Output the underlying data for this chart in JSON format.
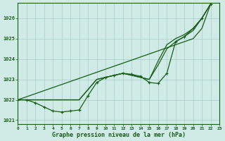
{
  "bg_color": "#d0eae6",
  "grid_color": "#a8ccc8",
  "line_color": "#1a5c1a",
  "title": "Graphe pression niveau de la mer (hPa)",
  "xlim": [
    0,
    23
  ],
  "ylim": [
    1020.8,
    1026.75
  ],
  "yticks": [
    1021,
    1022,
    1023,
    1024,
    1025,
    1026
  ],
  "x_all": [
    0,
    1,
    2,
    3,
    4,
    5,
    6,
    7,
    8,
    9,
    10,
    11,
    12,
    13,
    14,
    15,
    16,
    17,
    18,
    19,
    20,
    21,
    22
  ],
  "y_straight": [
    1022.0,
    1022.15,
    1022.3,
    1022.45,
    1022.6,
    1022.75,
    1022.9,
    1023.05,
    1023.2,
    1023.35,
    1023.5,
    1023.65,
    1023.8,
    1023.95,
    1024.1,
    1024.25,
    1024.4,
    1024.55,
    1024.7,
    1024.85,
    1025.0,
    1025.5,
    1026.7
  ],
  "y_main": [
    1022.0,
    1022.0,
    1021.85,
    1021.65,
    1021.45,
    1021.4,
    1021.45,
    1021.5,
    1022.2,
    1022.85,
    1023.1,
    1023.2,
    1023.3,
    1023.25,
    1023.15,
    1022.85,
    1022.8,
    1023.3,
    1024.85,
    1025.1,
    1025.5,
    1026.0,
    1026.7
  ],
  "y_upper1": [
    1022.0,
    1022.0,
    1022.0,
    1022.0,
    1022.0,
    1022.0,
    1022.0,
    1022.0,
    1022.5,
    1023.0,
    1023.1,
    1023.2,
    1023.3,
    1023.2,
    1023.1,
    1023.0,
    1023.7,
    1024.5,
    1024.85,
    1025.1,
    1025.4,
    1026.0,
    1026.7
  ],
  "y_upper2": [
    1022.0,
    1022.0,
    1022.0,
    1022.0,
    1022.0,
    1022.0,
    1022.0,
    1022.0,
    1022.5,
    1023.0,
    1023.1,
    1023.2,
    1023.3,
    1023.2,
    1023.1,
    1023.0,
    1023.9,
    1024.7,
    1025.0,
    1025.2,
    1025.5,
    1026.0,
    1026.7
  ]
}
